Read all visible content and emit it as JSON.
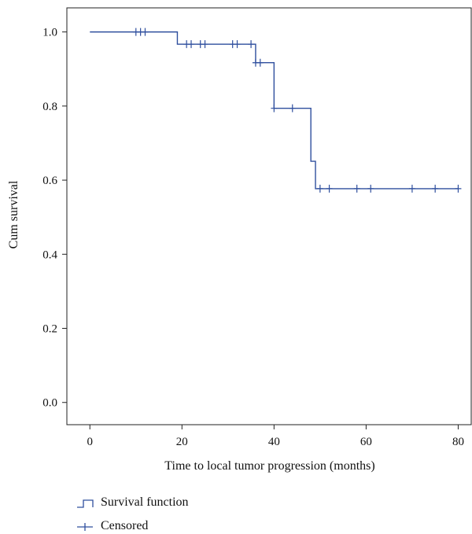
{
  "chart_data": {
    "type": "line",
    "xlabel": "Time to local tumor progression (months)",
    "ylabel": "Cum survival",
    "xlim": [
      -5,
      83
    ],
    "ylim": [
      -0.06,
      1.065
    ],
    "x_ticks": [
      0,
      20,
      40,
      60,
      80
    ],
    "y_ticks": [
      0.0,
      0.2,
      0.4,
      0.6,
      0.8,
      1.0
    ],
    "x_tick_labels": [
      "0",
      "20",
      "40",
      "60",
      "80"
    ],
    "y_tick_labels": [
      "0.0",
      "0.2",
      "0.4",
      "0.6",
      "0.8",
      "1.0"
    ],
    "grid": false,
    "legend_position": "bottom-left",
    "series": [
      {
        "name": "Survival function",
        "style": "step",
        "color": "#2f4f9e",
        "x": [
          0,
          19,
          36,
          40,
          48,
          49,
          80
        ],
        "y": [
          1.0,
          0.967,
          0.917,
          0.794,
          0.651,
          0.577,
          0.577
        ]
      },
      {
        "name": "Censored",
        "style": "marker-plus",
        "color": "#2f4f9e",
        "x": [
          10,
          11,
          12,
          21,
          22,
          24,
          25,
          31,
          32,
          35,
          36,
          37,
          40,
          44,
          50,
          52,
          58,
          61,
          70,
          75,
          80
        ],
        "y": [
          1.0,
          1.0,
          1.0,
          0.967,
          0.967,
          0.967,
          0.967,
          0.967,
          0.967,
          0.967,
          0.917,
          0.917,
          0.794,
          0.794,
          0.577,
          0.577,
          0.577,
          0.577,
          0.577,
          0.577,
          0.577
        ]
      }
    ]
  }
}
